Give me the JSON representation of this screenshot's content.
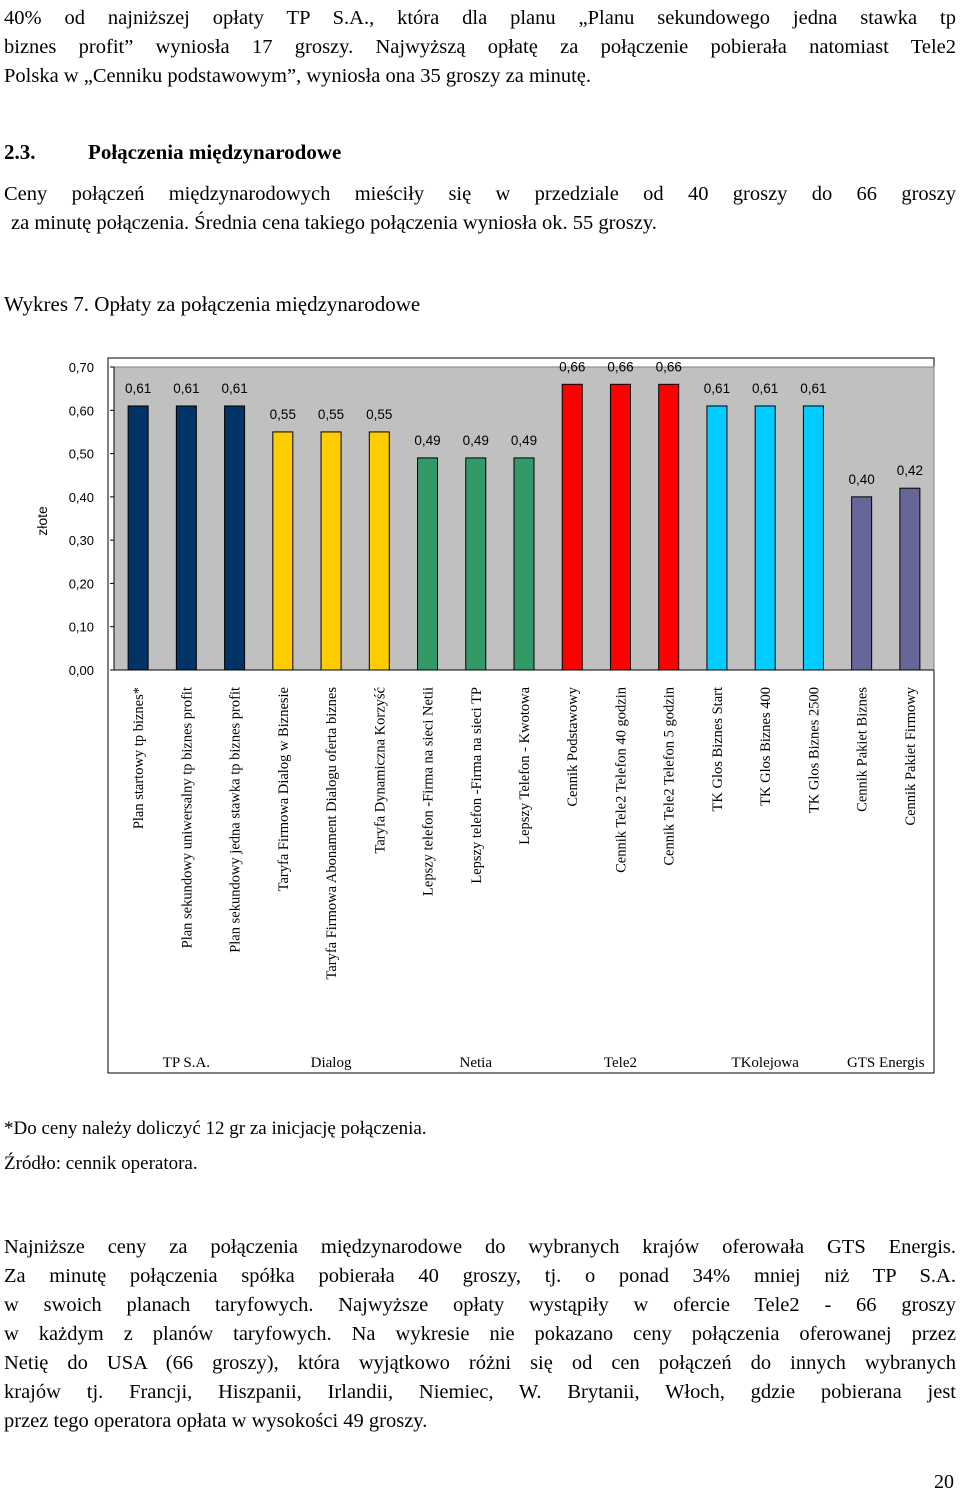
{
  "intro_lines": [
    "40% od najniższej opłaty TP S.A., która dla planu „Planu sekundowego jedna stawka tp",
    "biznes profit” wyniosła 17 groszy. Najwyższą opłatę za połączenie pobierała natomiast Tele2",
    "Polska w „Cenniku podstawowym”, wyniosła ona 35 groszy za minutę."
  ],
  "section": {
    "number": "2.3.",
    "title": "Połączenia międzynarodowe"
  },
  "section_lines": [
    "Ceny połączeń międzynarodowych mieściły się w przedziale od 40 groszy do 66 groszy",
    "za minutę połączenia. Średnia cena takiego połączenia wyniosła ok. 55 groszy."
  ],
  "figure_caption": "Wykres 7. Opłaty za połączenia międzynarodowe",
  "chart_data": {
    "type": "bar",
    "ylabel": "złote",
    "ylim": [
      0,
      0.7
    ],
    "yticks": [
      "0,00",
      "0,10",
      "0,20",
      "0,30",
      "0,40",
      "0,50",
      "0,60",
      "0,70"
    ],
    "grid": false,
    "categories": [
      "Plan startowy tp biznes*",
      "Plan sekundowy uniwersalny tp biznes profit",
      "Plan sekundowy jedna stawka tp biznes profit",
      "Taryfa Firmowa Dialog w Biznesie",
      "Taryfa Firmowa Abonament Dialogu oferta biznes",
      "Taryfa Dynamiczna Korzyść",
      "Lepszy telefon -Firma na sieci Netii",
      "Lepszy telefon -Firma na sieci TP",
      "Lepszy Telefon - Kwotowa",
      "Cennik Podstawowy",
      "Cennik Tele2 Telefon 40 godzin",
      "Cennik Tele2 Telefon 5 godzin",
      "TK Glos Biznes Start",
      "TK Glos Biznes 400",
      "TK Glos Biznes 2500",
      "Cennik Pakiet Biznes",
      "Cennik Pakiet Firmowy"
    ],
    "values": [
      0.61,
      0.61,
      0.61,
      0.55,
      0.55,
      0.55,
      0.49,
      0.49,
      0.49,
      0.66,
      0.66,
      0.66,
      0.61,
      0.61,
      0.61,
      0.4,
      0.42
    ],
    "value_labels": [
      "0,61",
      "0,61",
      "0,61",
      "0,55",
      "0,55",
      "0,55",
      "0,49",
      "0,49",
      "0,49",
      "0,66",
      "0,66",
      "0,66",
      "0,61",
      "0,61",
      "0,61",
      "0,40",
      "0,42"
    ],
    "groups": [
      {
        "name": "TP S.A.",
        "start": 0,
        "count": 3,
        "color": "#003366"
      },
      {
        "name": "Dialog",
        "start": 3,
        "count": 3,
        "color": "#ffcc00"
      },
      {
        "name": "Netia",
        "start": 6,
        "count": 3,
        "color": "#339966"
      },
      {
        "name": "Tele2",
        "start": 9,
        "count": 3,
        "color": "#ff0000"
      },
      {
        "name": "TKolejowa",
        "start": 12,
        "count": 3,
        "color": "#00ccff"
      },
      {
        "name": "GTS Energis",
        "start": 15,
        "count": 2,
        "color": "#666699"
      }
    ],
    "plot_background": "#c0c0c0"
  },
  "notes": [
    "*Do ceny należy doliczyć 12 gr za inicjację połączenia.",
    "Źródło: cennik operatora."
  ],
  "summary_lines": [
    "Najniższe ceny za połączenia międzynarodowe do wybranych krajów oferowała GTS Energis.",
    "Za minutę połączenia spółka pobierała 40 groszy, tj. o ponad 34% mniej niż TP S.A.",
    "w swoich planach taryfowych. Najwyższe opłaty wystąpiły w ofercie Tele2 - 66 groszy",
    "w każdym z planów taryfowych. Na wykresie nie pokazano ceny połączenia oferowanej przez",
    "Netię do USA (66 groszy), która wyjątkowo różni się od cen połączeń do innych wybranych",
    "krajów tj. Francji, Hiszpanii, Irlandii, Niemiec, W. Brytanii, Włoch, gdzie pobierana jest",
    "przez tego operatora opłata w wysokości 49 groszy."
  ],
  "page_number": "20"
}
